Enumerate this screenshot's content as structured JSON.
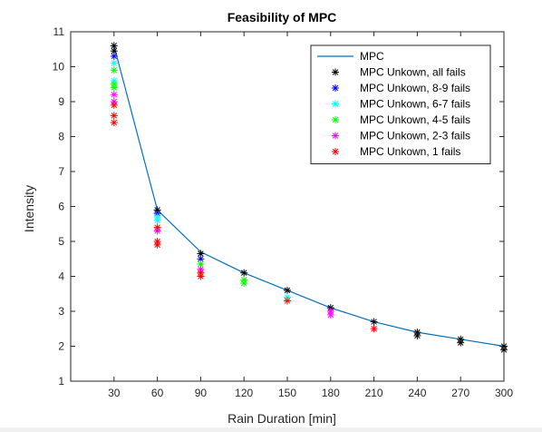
{
  "chart_data": {
    "type": "scatter",
    "title": "Feasibility of MPC",
    "xlabel": "Rain Duration [min]",
    "ylabel": "Intensity",
    "xlim": [
      0,
      300
    ],
    "ylim": [
      1,
      11
    ],
    "xticks": [
      30,
      60,
      90,
      120,
      150,
      180,
      210,
      240,
      270,
      300
    ],
    "yticks": [
      1,
      2,
      3,
      4,
      5,
      6,
      7,
      8,
      9,
      10,
      11
    ],
    "grid": false,
    "legend_position": "top-right",
    "series": [
      {
        "name": "MPC",
        "style": "line",
        "color": "#0072BD",
        "x": [
          30,
          60,
          90,
          120,
          150,
          180,
          210,
          240,
          270,
          300
        ],
        "y": [
          10.6,
          5.9,
          4.7,
          4.1,
          3.6,
          3.1,
          2.7,
          2.4,
          2.2,
          2.0
        ]
      },
      {
        "name": "MPC Unkown, all fails",
        "style": "asterisk",
        "color": "#000000",
        "x": [
          30,
          30,
          60,
          90,
          120,
          150,
          180,
          210,
          240,
          240,
          270,
          270,
          300,
          300
        ],
        "y": [
          10.6,
          10.45,
          5.9,
          4.65,
          4.1,
          3.6,
          3.1,
          2.7,
          2.4,
          2.3,
          2.2,
          2.1,
          2.0,
          1.9
        ]
      },
      {
        "name": "MPC Unkown, 8-9 fails",
        "style": "asterisk",
        "color": "#0000FF",
        "x": [
          30,
          60,
          90
        ],
        "y": [
          10.3,
          5.8,
          4.5
        ]
      },
      {
        "name": "MPC Unkown, 6-7 fails",
        "style": "asterisk",
        "color": "#00FFFF",
        "x": [
          30,
          30,
          60,
          60,
          150
        ],
        "y": [
          10.1,
          9.6,
          5.6,
          5.7,
          3.4
        ]
      },
      {
        "name": "MPC Unkown, 4-5 fails",
        "style": "asterisk",
        "color": "#00FF00",
        "x": [
          30,
          30,
          30,
          90,
          120,
          120
        ],
        "y": [
          9.9,
          9.5,
          9.4,
          4.35,
          3.9,
          3.8
        ]
      },
      {
        "name": "MPC Unkown, 2-3 fails",
        "style": "asterisk",
        "color": "#FF00FF",
        "x": [
          30,
          30,
          60,
          90,
          180,
          180
        ],
        "y": [
          9.2,
          9.0,
          5.3,
          4.2,
          3.0,
          2.9
        ]
      },
      {
        "name": "MPC Unkown, 1 fails",
        "style": "asterisk",
        "color": "#FF0000",
        "x": [
          30,
          30,
          30,
          60,
          60,
          60,
          90,
          90,
          150,
          210
        ],
        "y": [
          8.9,
          8.6,
          8.4,
          5.4,
          5.0,
          4.9,
          4.1,
          4.0,
          3.3,
          2.5
        ]
      }
    ]
  }
}
